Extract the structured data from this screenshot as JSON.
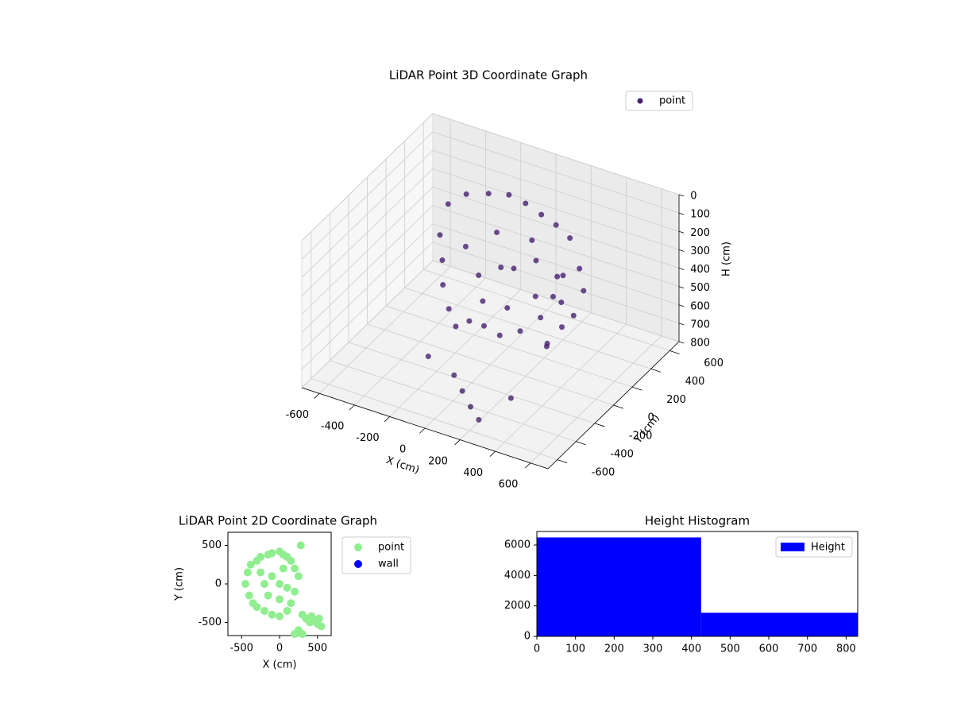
{
  "chart_data": [
    {
      "type": "scatter3d",
      "title": "LiDAR Point 3D Coordinate Graph",
      "x_label": "X (cm)",
      "y_label": "Y (cm)",
      "z_label": "H (cm)",
      "xlim": [
        -700,
        700
      ],
      "ylim": [
        -700,
        700
      ],
      "zlim": [
        800,
        0
      ],
      "xticks": [
        -600,
        -400,
        -200,
        0,
        200,
        400,
        600
      ],
      "yticks": [
        -600,
        -400,
        -200,
        0,
        200,
        400,
        600
      ],
      "zticks": [
        0,
        100,
        200,
        300,
        400,
        500,
        600,
        700,
        800
      ],
      "grid": true,
      "legend": "upper right",
      "series": [
        {
          "name": "point",
          "color": "#46216f",
          "x": [
            -400,
            -350,
            -250,
            -150,
            -50,
            50,
            150,
            250,
            -420,
            -380,
            -350,
            -300,
            -250,
            -200,
            -100,
            0,
            100,
            200,
            250,
            280,
            -300,
            -200,
            -100,
            0,
            100,
            -150,
            50,
            300,
            350,
            380,
            320,
            350,
            400,
            450,
            420,
            -150,
            0,
            150,
            -300,
            -100,
            0,
            100,
            200,
            250
          ],
          "y": [
            300,
            400,
            450,
            480,
            470,
            450,
            420,
            380,
            250,
            200,
            150,
            120,
            100,
            150,
            120,
            100,
            130,
            160,
            200,
            250,
            300,
            250,
            300,
            250,
            300,
            350,
            350,
            150,
            100,
            50,
            0,
            -50,
            200,
            150,
            100,
            200,
            180,
            200,
            -100,
            -200,
            -300,
            -400,
            -500,
            -250
          ],
          "z": [
            200,
            180,
            170,
            160,
            170,
            190,
            200,
            220,
            350,
            450,
            550,
            650,
            720,
            700,
            680,
            690,
            650,
            560,
            450,
            350,
            400,
            500,
            450,
            400,
            350,
            300,
            280,
            300,
            400,
            500,
            600,
            550,
            250,
            330,
            450,
            600,
            580,
            480,
            800,
            790,
            795,
            800,
            790,
            780
          ]
        }
      ]
    },
    {
      "type": "scatter",
      "title": "LiDAR Point 2D Coordinate Graph",
      "x_label": "X (cm)",
      "y_label": "Y (cm)",
      "xlim": [
        -680,
        680
      ],
      "ylim": [
        -670,
        670
      ],
      "xticks": [
        -500,
        0,
        500
      ],
      "yticks": [
        -500,
        0,
        500
      ],
      "legend": "outside right",
      "series": [
        {
          "name": "point",
          "color": "#90ee90",
          "x": [
            -450,
            -420,
            -400,
            -380,
            -350,
            -300,
            -250,
            -200,
            -150,
            -100,
            0,
            50,
            100,
            150,
            200,
            250,
            200,
            150,
            100,
            0,
            -100,
            -300,
            -200,
            -100,
            0,
            100,
            -250,
            -150,
            50,
            0,
            280,
            300,
            350,
            400,
            450,
            500,
            550,
            520,
            420,
            250,
            200,
            300
          ],
          "y": [
            0,
            150,
            -150,
            250,
            -250,
            300,
            350,
            -350,
            380,
            400,
            420,
            380,
            350,
            300,
            200,
            100,
            -100,
            -250,
            -350,
            -420,
            -400,
            -300,
            0,
            100,
            0,
            -50,
            150,
            -150,
            200,
            -200,
            500,
            -400,
            -450,
            -500,
            -480,
            -520,
            -550,
            -450,
            -420,
            -600,
            -650,
            -650
          ]
        },
        {
          "name": "wall",
          "color": "#0000ff",
          "x": [],
          "y": []
        }
      ]
    },
    {
      "type": "histogram",
      "title": "Height Histogram",
      "bins": [
        0,
        425,
        830
      ],
      "values": [
        6500,
        1550
      ],
      "color": "#0000ff",
      "name": "Height",
      "xlim": [
        0,
        830
      ],
      "ylim": [
        0,
        6890
      ],
      "xticks": [
        0,
        100,
        200,
        300,
        400,
        500,
        600,
        700,
        800
      ],
      "yticks": [
        0,
        2000,
        4000,
        6000
      ],
      "legend": "upper right"
    }
  ]
}
